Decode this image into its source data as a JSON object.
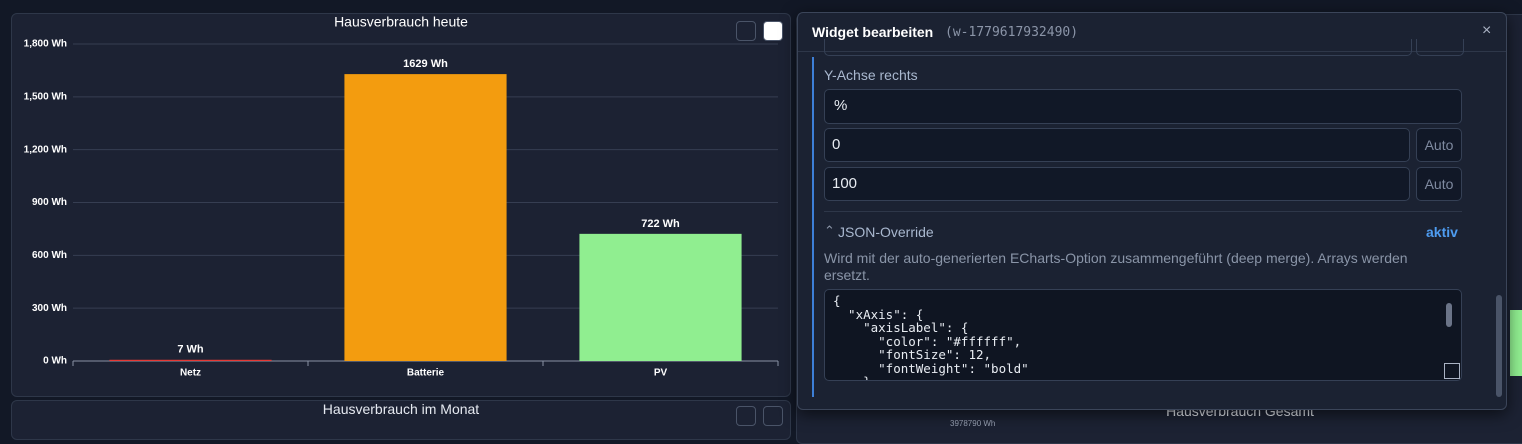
{
  "chart_data": {
    "type": "bar",
    "title": "Hausverbrauch heute",
    "categories": [
      "Netz",
      "Batterie",
      "PV"
    ],
    "values": [
      7,
      1629,
      722
    ],
    "value_labels": [
      "7 Wh",
      "1629 Wh",
      "722 Wh"
    ],
    "colors": [
      "#e53935",
      "#f39c0f",
      "#90ee90"
    ],
    "ylim": [
      0,
      1800
    ],
    "yticks": [
      {
        "value": 0,
        "label": "0 Wh"
      },
      {
        "value": 300,
        "label": "300 Wh"
      },
      {
        "value": 600,
        "label": "600 Wh"
      },
      {
        "value": 900,
        "label": "900 Wh"
      },
      {
        "value": 1200,
        "label": "1,200 Wh"
      },
      {
        "value": 1500,
        "label": "1,500 Wh"
      },
      {
        "value": 1800,
        "label": "1,800 Wh"
      }
    ],
    "grid": true
  },
  "panels": {
    "monthly_title": "Hausverbrauch im Monat",
    "total_title": "Hausverbrauch Gesamt",
    "total_value": "3978790 Wh"
  },
  "dialog": {
    "title": "Widget bearbeiten",
    "id": "(w-1779617932490)",
    "close": "×",
    "section": "Y-Achse rechts",
    "unit": "%",
    "min": "0",
    "max": "100",
    "auto": "Auto",
    "json_title": "JSON-Override",
    "json_status": "aktiv",
    "json_description": "Wird mit der auto-generierten ECharts-Option zusammengeführt (deep merge). Arrays werden ersetzt.",
    "code_lines": [
      "{",
      "  \"xAxis\": {",
      "    \"axisLabel\": {",
      "      \"color\": \"#ffffff\",",
      "      \"fontSize\": 12,",
      "      \"fontWeight\": \"bold\"",
      "    }"
    ]
  }
}
